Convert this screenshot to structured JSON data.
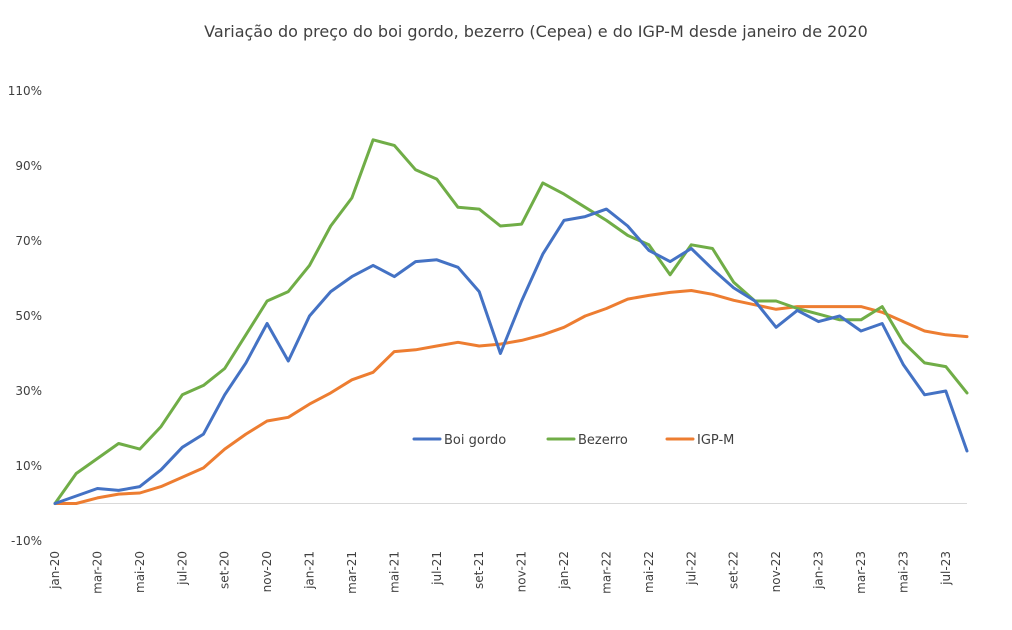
{
  "chart_data": {
    "type": "line",
    "title": "Variação do preço do boi gordo, bezerro (Cepea) e do IGP-M desde janeiro de 2020",
    "xlabel": "",
    "ylabel": "",
    "x": [
      "jan-20",
      "fev-20",
      "mar-20",
      "abr-20",
      "mai-20",
      "jun-20",
      "jul-20",
      "ago-20",
      "set-20",
      "out-20",
      "nov-20",
      "dez-20",
      "jan-21",
      "fev-21",
      "mar-21",
      "abr-21",
      "mai-21",
      "jun-21",
      "jul-21",
      "ago-21",
      "set-21",
      "out-21",
      "nov-21",
      "dez-21",
      "jan-22",
      "fev-22",
      "mar-22",
      "abr-22",
      "mai-22",
      "jun-22",
      "jul-22",
      "ago-22",
      "set-22",
      "out-22",
      "nov-22",
      "dez-22",
      "jan-23",
      "fev-23",
      "mar-23",
      "abr-23",
      "mai-23",
      "jun-23",
      "jul-23",
      "ago-23"
    ],
    "x_tick_labels": [
      "jan-20",
      "mar-20",
      "mai-20",
      "jul-20",
      "set-20",
      "nov-20",
      "jan-21",
      "mar-21",
      "mai-21",
      "jul-21",
      "set-21",
      "nov-21",
      "jan-22",
      "mar-22",
      "mai-22",
      "jul-22",
      "set-22",
      "nov-22",
      "jan-23",
      "mar-23",
      "mai-23",
      "jul-23"
    ],
    "y_tick_labels": [
      "-10%",
      "10%",
      "30%",
      "50%",
      "70%",
      "90%",
      "110%"
    ],
    "ylim": [
      -10,
      110
    ],
    "y_ticks": [
      -10,
      10,
      30,
      50,
      70,
      90,
      110
    ],
    "grid": false,
    "zero_line": true,
    "legend_placement": "center",
    "series": [
      {
        "name": "Boi gordo",
        "color": "#4472C4",
        "values": [
          0,
          2,
          4,
          3.5,
          4.5,
          9,
          15,
          18.5,
          29,
          37.5,
          48,
          38,
          50,
          56.5,
          60.5,
          63.5,
          60.5,
          64.5,
          65,
          63,
          56.5,
          40,
          54,
          66.5,
          75.5,
          76.5,
          78.5,
          74,
          67.5,
          64.5,
          68,
          62.5,
          57.5,
          54,
          47,
          51.5,
          48.5,
          50,
          46,
          48,
          37,
          29,
          30,
          14
        ]
      },
      {
        "name": "Bezerro",
        "color": "#70AD47",
        "values": [
          0,
          8,
          12,
          16,
          14.5,
          20.5,
          29,
          31.5,
          36,
          45,
          54,
          56.5,
          63.5,
          74,
          81.5,
          97,
          95.5,
          89,
          86.5,
          79,
          78.5,
          74,
          74.5,
          85.5,
          82.5,
          79,
          75.5,
          71.5,
          69,
          61,
          69,
          68,
          59,
          54,
          54,
          52,
          50.5,
          49,
          49,
          52.5,
          43,
          37.5,
          36.5,
          29.5
        ]
      },
      {
        "name": "IGP-M",
        "color": "#ED7D31",
        "values": [
          0,
          0,
          1.5,
          2.5,
          2.8,
          4.5,
          7,
          9.5,
          14.5,
          18.5,
          22,
          23,
          26.5,
          29.5,
          33,
          35,
          40.5,
          41,
          42,
          43,
          42,
          42.5,
          43.5,
          45,
          47,
          50,
          52,
          54.5,
          55.5,
          56.3,
          56.8,
          55.8,
          54.2,
          53,
          51.8,
          52.5,
          52.5,
          52.5,
          52.5,
          51,
          48.5,
          46,
          45,
          44.5
        ]
      }
    ]
  }
}
